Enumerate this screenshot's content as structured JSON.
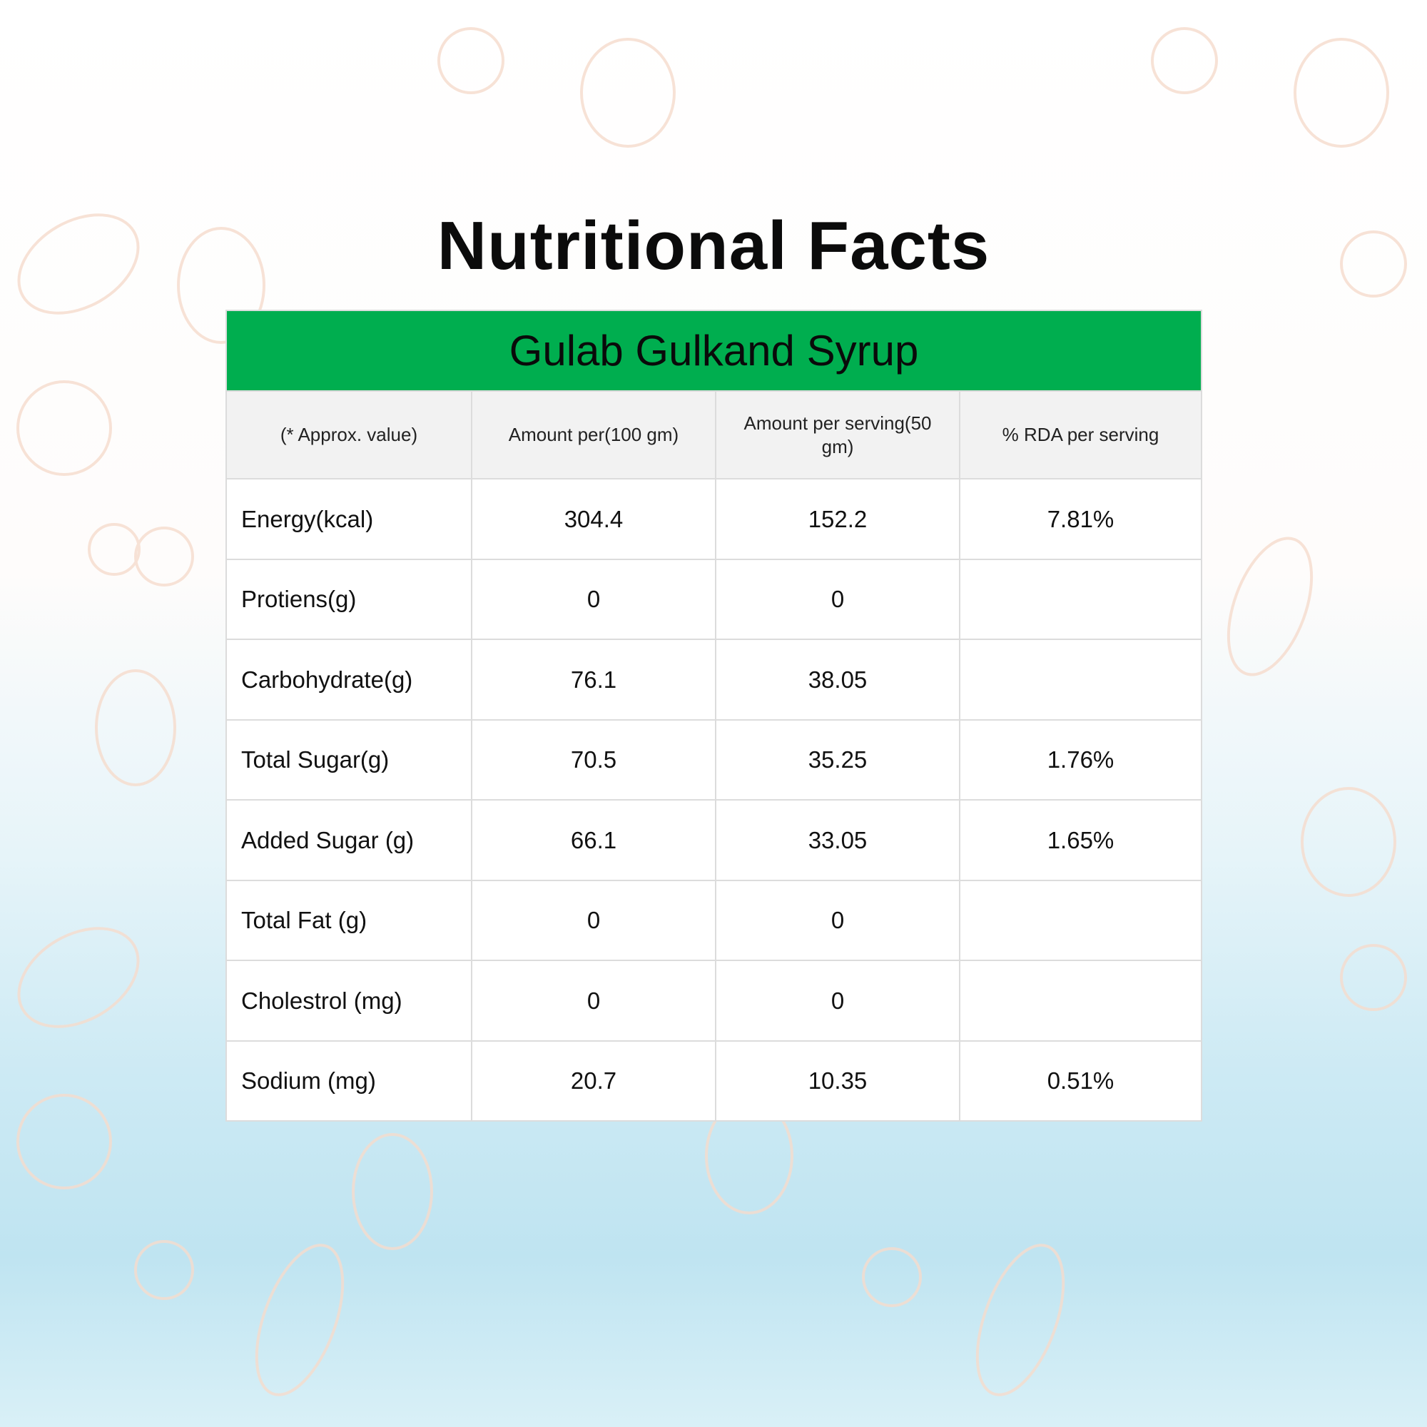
{
  "title": "Nutritional Facts",
  "product": "Gulab Gulkand Syrup",
  "colors": {
    "band": "#00ae4f",
    "background_top": "#ffffff",
    "background_bottom": "#bfe4f1"
  },
  "headers": [
    "(* Approx. value)",
    "Amount per(100 gm)",
    "Amount per serving(50 gm)",
    "% RDA per serving"
  ],
  "rows": [
    [
      "Energy(kcal)",
      "304.4",
      "152.2",
      "7.81%"
    ],
    [
      "Protiens(g)",
      "0",
      "0",
      ""
    ],
    [
      "Carbohydrate(g)",
      "76.1",
      "38.05",
      ""
    ],
    [
      "Total Sugar(g)",
      "70.5",
      "35.25",
      "1.76%"
    ],
    [
      "Added Sugar (g)",
      "66.1",
      "33.05",
      "1.65%"
    ],
    [
      "Total Fat (g)",
      "0",
      "0",
      ""
    ],
    [
      "Cholestrol (mg)",
      "0",
      "0",
      ""
    ],
    [
      "Sodium (mg)",
      "20.7",
      "10.35",
      "0.51%"
    ]
  ]
}
